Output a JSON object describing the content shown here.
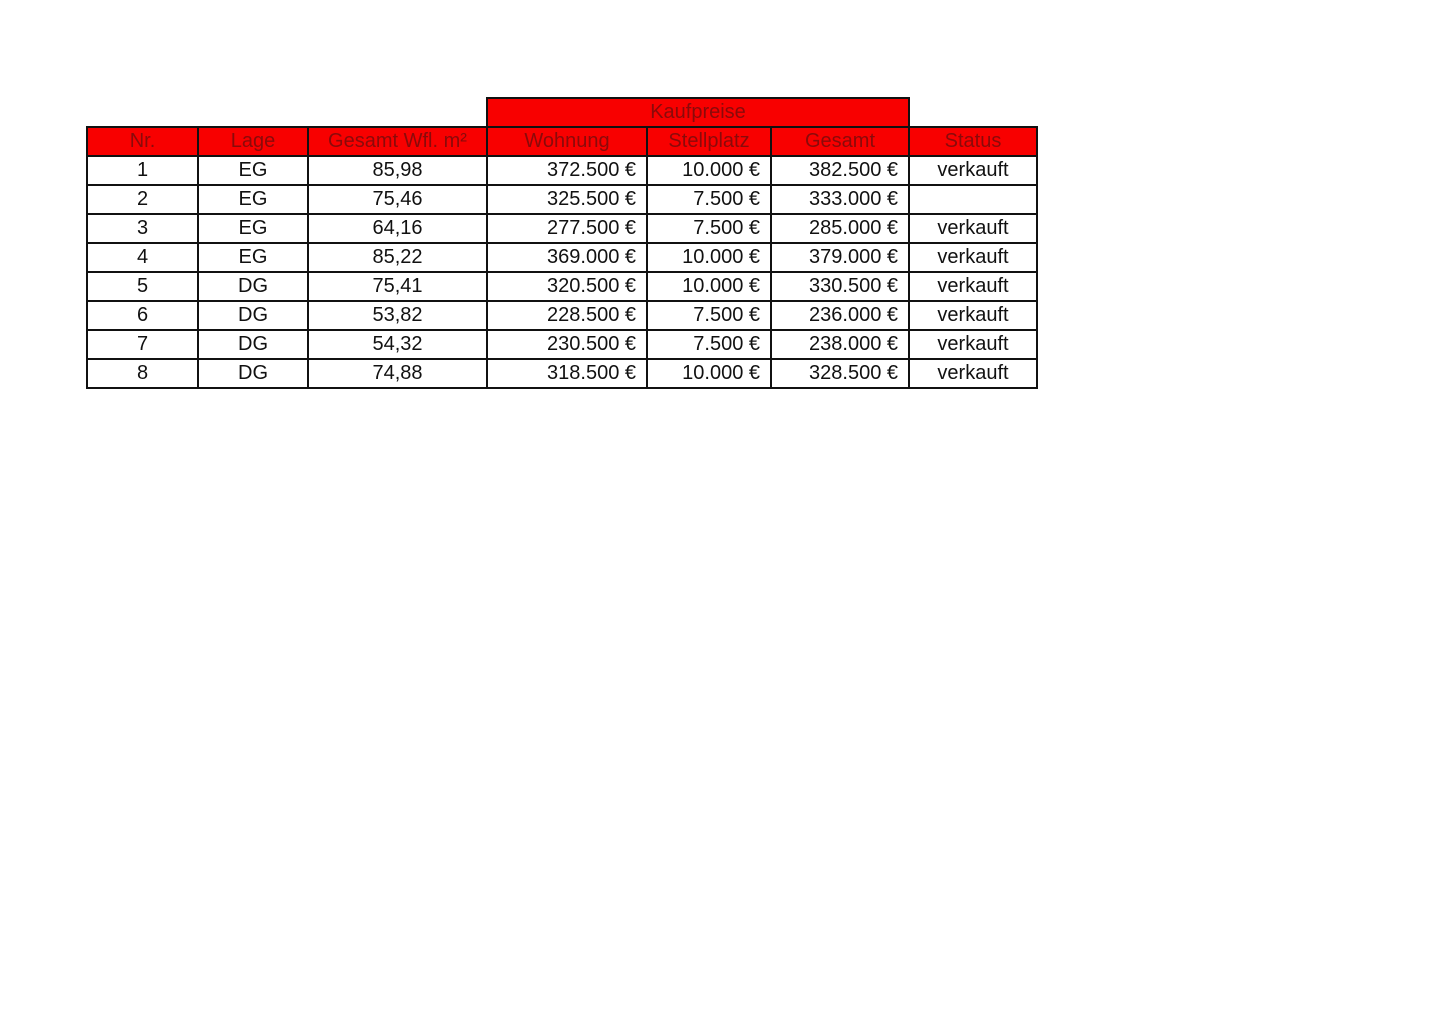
{
  "colors": {
    "header_bg": "#f80000",
    "header_text": "#8a0a0a"
  },
  "group_header": "Kaufpreise",
  "columns": [
    "Nr.",
    "Lage",
    "Gesamt Wfl. m²",
    "Wohnung",
    "Stellplatz",
    "Gesamt",
    "Status"
  ],
  "rows": [
    [
      "1",
      "EG",
      "85,98",
      "372.500 €",
      "10.000 €",
      "382.500 €",
      "verkauft"
    ],
    [
      "2",
      "EG",
      "75,46",
      "325.500 €",
      "7.500 €",
      "333.000 €",
      ""
    ],
    [
      "3",
      "EG",
      "64,16",
      "277.500 €",
      "7.500 €",
      "285.000 €",
      "verkauft"
    ],
    [
      "4",
      "EG",
      "85,22",
      "369.000 €",
      "10.000 €",
      "379.000 €",
      "verkauft"
    ],
    [
      "5",
      "DG",
      "75,41",
      "320.500 €",
      "10.000 €",
      "330.500 €",
      "verkauft"
    ],
    [
      "6",
      "DG",
      "53,82",
      "228.500 €",
      "7.500 €",
      "236.000 €",
      "verkauft"
    ],
    [
      "7",
      "DG",
      "54,32",
      "230.500 €",
      "7.500 €",
      "238.000 €",
      "verkauft"
    ],
    [
      "8",
      "DG",
      "74,88",
      "318.500 €",
      "10.000 €",
      "328.500 €",
      "verkauft"
    ]
  ]
}
